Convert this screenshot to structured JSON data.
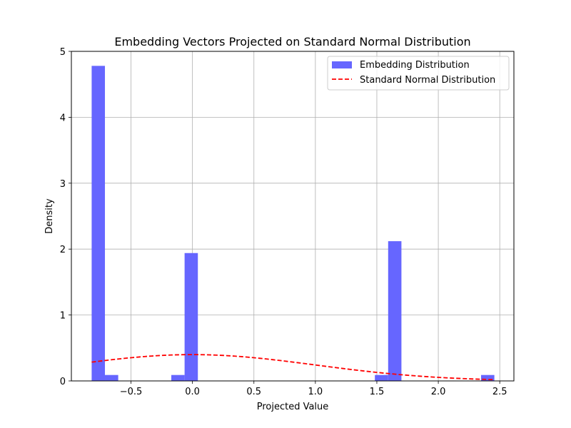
{
  "chart_data": {
    "type": "bar",
    "title": "Embedding Vectors Projected on Standard Normal Distribution",
    "xlabel": "Projected Value",
    "ylabel": "Density",
    "xlim": [
      -0.985,
      2.615
    ],
    "ylim": [
      0,
      5
    ],
    "xticks": [
      -0.5,
      0.0,
      0.5,
      1.0,
      1.5,
      2.0,
      2.5
    ],
    "xtick_labels": [
      "−0.5",
      "0.0",
      "0.5",
      "1.0",
      "1.5",
      "2.0",
      "2.5"
    ],
    "yticks": [
      0,
      1,
      2,
      3,
      4,
      5
    ],
    "ytick_labels": [
      "0",
      "1",
      "2",
      "3",
      "4",
      "5"
    ],
    "grid": true,
    "legend_position": "top-right",
    "series": [
      {
        "name": "Embedding Distribution",
        "kind": "histogram",
        "color": "#6666ff",
        "bins": [
          {
            "x0": -0.82,
            "x1": -0.712,
            "value": 4.78
          },
          {
            "x0": -0.712,
            "x1": -0.604,
            "value": 0.09
          },
          {
            "x0": -0.172,
            "x1": -0.064,
            "value": 0.09
          },
          {
            "x0": -0.064,
            "x1": 0.044,
            "value": 1.94
          },
          {
            "x0": 1.484,
            "x1": 1.592,
            "value": 0.09
          },
          {
            "x0": 1.592,
            "x1": 1.7,
            "value": 2.12
          },
          {
            "x0": 2.348,
            "x1": 2.456,
            "value": 0.09
          }
        ]
      },
      {
        "name": "Standard Normal Distribution",
        "kind": "line",
        "color": "#ff0000",
        "style": "dashed",
        "x_range": [
          -0.82,
          2.45
        ]
      }
    ]
  }
}
